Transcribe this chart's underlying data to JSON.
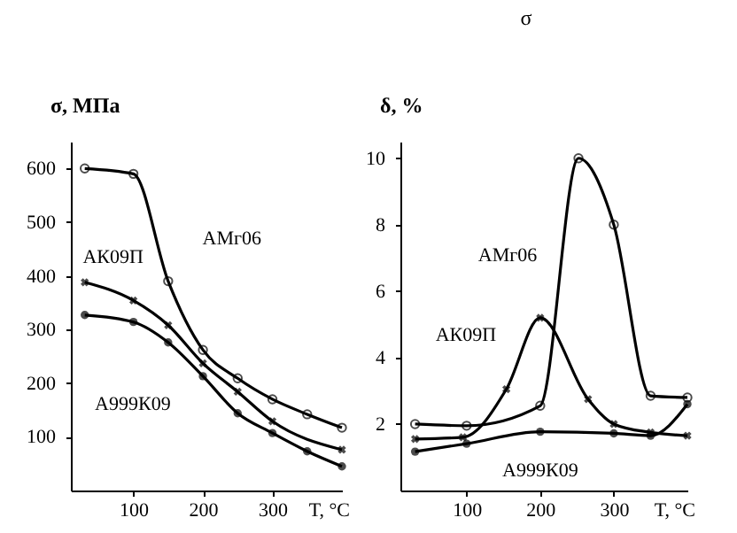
{
  "chart_data": [
    {
      "type": "line",
      "xlabel": "T, °C",
      "ylabel": "σ, MПa",
      "xlim": [
        10,
        400
      ],
      "xticks": [
        100,
        200,
        300
      ],
      "ylim": [
        0,
        650
      ],
      "yticks": [
        100,
        200,
        300,
        400,
        500,
        600
      ],
      "grid": false,
      "line_style": "solid",
      "series": [
        {
          "name": "АМг06",
          "color": "#000000",
          "marker": "circle",
          "x": [
            30,
            100,
            150,
            200,
            250,
            300,
            350,
            400
          ],
          "values": [
            600,
            590,
            390,
            262,
            209,
            170,
            142,
            117
          ]
        },
        {
          "name": "АК09П",
          "color": "#000000",
          "marker": "cross",
          "x": [
            30,
            100,
            150,
            200,
            250,
            300,
            400
          ],
          "values": [
            388,
            354,
            308,
            237,
            184,
            129,
            76
          ]
        },
        {
          "name": "А999К09",
          "color": "#000000",
          "marker": "dot",
          "x": [
            30,
            100,
            150,
            200,
            250,
            300,
            350,
            400
          ],
          "values": [
            327,
            314,
            276,
            213,
            144,
            107,
            73,
            45
          ]
        }
      ]
    },
    {
      "type": "line",
      "xlabel": "T, °C",
      "ylabel": "δ, %",
      "xlim": [
        10,
        400
      ],
      "xticks": [
        100,
        200,
        300
      ],
      "ylim": [
        0,
        10.5
      ],
      "yticks": [
        2,
        4,
        6,
        8,
        10
      ],
      "grid": false,
      "line_style": "solid",
      "annotations": [
        "σ"
      ],
      "series": [
        {
          "name": "АМг06",
          "color": "#000000",
          "marker": "circle",
          "x": [
            30,
            100,
            200,
            252,
            300,
            350,
            400
          ],
          "values": [
            2.0,
            1.95,
            2.55,
            10.0,
            8.0,
            2.85,
            2.8
          ]
        },
        {
          "name": "АК09П",
          "color": "#000000",
          "marker": "cross",
          "x": [
            30,
            95,
            154,
            200,
            265,
            300,
            350,
            400
          ],
          "values": [
            1.55,
            1.6,
            3.05,
            5.2,
            2.75,
            2.0,
            1.75,
            1.65
          ]
        },
        {
          "name": "А999К09",
          "color": "#000000",
          "marker": "dot",
          "x": [
            30,
            100,
            200,
            300,
            350,
            400
          ],
          "values": [
            1.17,
            1.41,
            1.77,
            1.72,
            1.65,
            2.6
          ]
        }
      ]
    }
  ]
}
